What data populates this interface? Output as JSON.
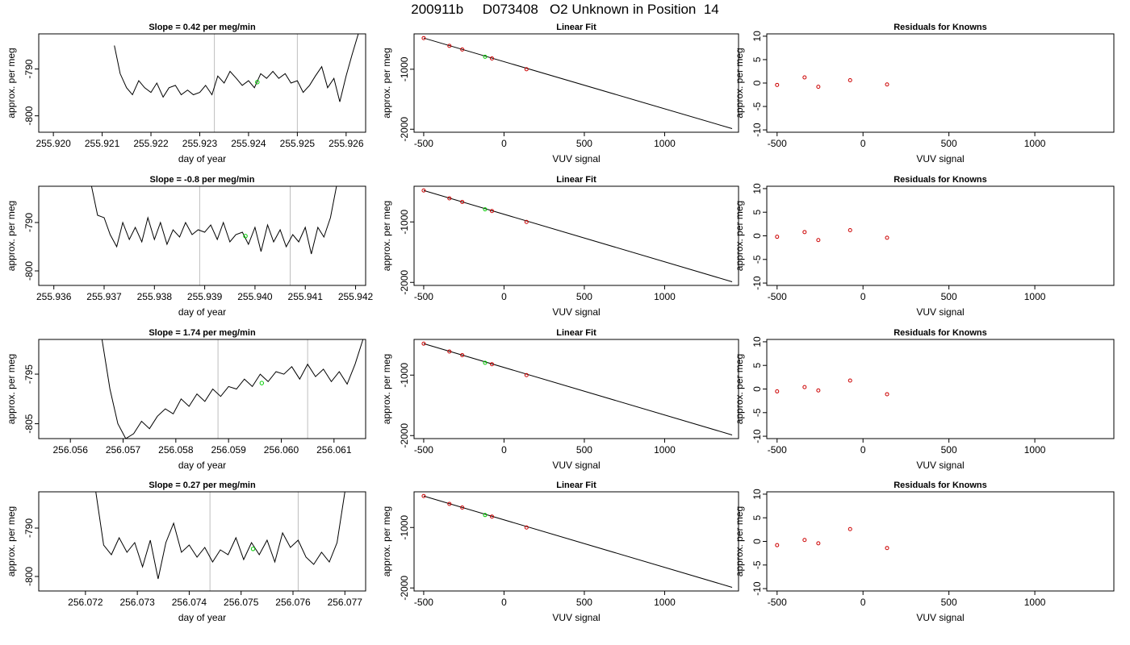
{
  "page_title": "200911b     D073408   O2 Unknown in Position  14",
  "colors": {
    "series_line": "#000000",
    "marker_green": "#00cc00",
    "marker_red": "#cc0000",
    "reference_vline": "#bebebe",
    "fit_line": "#000000"
  },
  "chart_data": [
    {
      "type": "line",
      "panel": "timeseries",
      "title": "Slope =  0.42  per meg/min",
      "xlabel": "day of year",
      "ylabel": "approx. per meg",
      "xlim": [
        255.9197,
        255.9264
      ],
      "ylim": [
        -803.5,
        -782.5
      ],
      "xticks": [
        255.92,
        255.921,
        255.922,
        255.923,
        255.924,
        255.925,
        255.926
      ],
      "xtick_labels": [
        "255.920",
        "255.921",
        "255.922",
        "255.923",
        "255.924",
        "255.925",
        "255.926"
      ],
      "yticks": [
        -790,
        -800
      ],
      "ytick_labels": [
        "-790",
        "-800"
      ],
      "vlines": [
        255.9233,
        255.925
      ],
      "x": [
        255.92125,
        255.92137,
        255.9215,
        255.92162,
        255.92175,
        255.92187,
        255.922,
        255.92212,
        255.92225,
        255.92237,
        255.9225,
        255.92262,
        255.92275,
        255.92287,
        255.923,
        255.92312,
        255.92325,
        255.92337,
        255.9235,
        255.92362,
        255.92375,
        255.92387,
        255.924,
        255.92412,
        255.92425,
        255.92437,
        255.9245,
        255.92462,
        255.92475,
        255.92487,
        255.925,
        255.92512,
        255.92525,
        255.92537,
        255.9255,
        255.92562,
        255.92575,
        255.92587,
        255.926,
        255.92612,
        255.92625
      ],
      "y": [
        -785.0,
        -791.0,
        -794.0,
        -795.5,
        -792.5,
        -794.0,
        -795.0,
        -793.0,
        -796.0,
        -794.0,
        -793.5,
        -795.5,
        -794.5,
        -795.5,
        -795.0,
        -793.5,
        -795.5,
        -791.5,
        -793.0,
        -790.5,
        -792.0,
        -793.5,
        -792.5,
        -794.0,
        -791.0,
        -792.0,
        -790.5,
        -792.0,
        -791.0,
        -793.0,
        -792.5,
        -795.0,
        -793.5,
        -791.5,
        -789.5,
        -794.0,
        -792.0,
        -797.0,
        -791.5,
        -787.0,
        -782.5
      ],
      "green_point": {
        "x": 255.92418,
        "y": -792.8
      }
    },
    {
      "type": "scatter",
      "panel": "fit",
      "title": "Linear Fit",
      "xlabel": "VUV signal",
      "ylabel": "approx. per meg",
      "xlim": [
        -560,
        1460
      ],
      "ylim": [
        -2050,
        -410
      ],
      "xticks": [
        -500,
        0,
        500,
        1000
      ],
      "xtick_labels": [
        "-500",
        "0",
        "500",
        "1000"
      ],
      "yticks": [
        -1000,
        -2000
      ],
      "ytick_labels": [
        "-1000",
        "-2000"
      ],
      "fit_line": {
        "x": [
          -500,
          1420
        ],
        "y": [
          -480,
          -1990
        ]
      },
      "knowns": {
        "x": [
          -500,
          -340,
          -260,
          -75,
          140
        ],
        "y": [
          -480,
          -610,
          -670,
          -820,
          -1000
        ]
      },
      "unknown": {
        "x": -118,
        "y": -792
      }
    },
    {
      "type": "scatter",
      "panel": "residuals",
      "title": "Residuals for Knowns",
      "xlabel": "VUV signal",
      "ylabel": "approx. per meg",
      "xlim": [
        -560,
        1460
      ],
      "ylim": [
        -10.5,
        10.5
      ],
      "xticks": [
        -500,
        0,
        500,
        1000
      ],
      "xtick_labels": [
        "-500",
        "0",
        "500",
        "1000"
      ],
      "yticks": [
        10,
        5,
        0,
        -5,
        -10
      ],
      "ytick_labels": [
        "10",
        "5",
        "0",
        "-5",
        "-10"
      ],
      "x": [
        -500,
        -340,
        -260,
        -75,
        140
      ],
      "y": [
        -0.4,
        1.2,
        -0.8,
        0.6,
        -0.3
      ]
    },
    {
      "type": "line",
      "panel": "timeseries",
      "title": "Slope =  -0.8  per meg/min",
      "xlabel": "day of year",
      "ylabel": "approx. per meg",
      "xlim": [
        255.9357,
        255.9422
      ],
      "ylim": [
        -803.0,
        -782.5
      ],
      "xticks": [
        255.936,
        255.937,
        255.938,
        255.939,
        255.94,
        255.941,
        255.942
      ],
      "xtick_labels": [
        "255.936",
        "255.937",
        "255.938",
        "255.939",
        "255.940",
        "255.941",
        "255.942"
      ],
      "yticks": [
        -790,
        -800
      ],
      "ytick_labels": [
        "-790",
        "-800"
      ],
      "vlines": [
        255.9389,
        255.9407
      ],
      "x": [
        255.93675,
        255.93687,
        255.937,
        255.93712,
        255.93725,
        255.93737,
        255.9375,
        255.93762,
        255.93775,
        255.93787,
        255.938,
        255.93812,
        255.93825,
        255.93837,
        255.9385,
        255.93862,
        255.93875,
        255.93887,
        255.939,
        255.93912,
        255.93925,
        255.93937,
        255.9395,
        255.93962,
        255.93975,
        255.93987,
        255.94,
        255.94012,
        255.94025,
        255.94037,
        255.9405,
        255.94062,
        255.94075,
        255.94087,
        255.941,
        255.94112,
        255.94125,
        255.94137,
        255.9415,
        255.94162
      ],
      "y": [
        -782.5,
        -788.5,
        -789.0,
        -792.5,
        -795.0,
        -790.0,
        -793.5,
        -791.0,
        -794.0,
        -789.0,
        -793.5,
        -790.0,
        -794.5,
        -791.5,
        -793.0,
        -790.0,
        -792.5,
        -791.5,
        -792.0,
        -790.5,
        -793.5,
        -790.0,
        -794.0,
        -792.5,
        -792.0,
        -794.5,
        -791.0,
        -796.0,
        -790.5,
        -794.0,
        -791.5,
        -795.0,
        -792.5,
        -794.0,
        -791.0,
        -796.5,
        -791.0,
        -793.0,
        -789.0,
        -782.5
      ],
      "green_point": {
        "x": 255.93981,
        "y": -792.8
      }
    },
    {
      "type": "scatter",
      "panel": "fit",
      "title": "Linear Fit",
      "xlabel": "VUV signal",
      "ylabel": "approx. per meg",
      "xlim": [
        -560,
        1460
      ],
      "ylim": [
        -2050,
        -410
      ],
      "xticks": [
        -500,
        0,
        500,
        1000
      ],
      "xtick_labels": [
        "-500",
        "0",
        "500",
        "1000"
      ],
      "yticks": [
        -1000,
        -2000
      ],
      "ytick_labels": [
        "-1000",
        "-2000"
      ],
      "fit_line": {
        "x": [
          -500,
          1420
        ],
        "y": [
          -480,
          -1990
        ]
      },
      "knowns": {
        "x": [
          -500,
          -340,
          -260,
          -75,
          140
        ],
        "y": [
          -480,
          -610,
          -670,
          -820,
          -1000
        ]
      },
      "unknown": {
        "x": -118,
        "y": -792
      }
    },
    {
      "type": "scatter",
      "panel": "residuals",
      "title": "Residuals for Knowns",
      "xlabel": "VUV signal",
      "ylabel": "approx. per meg",
      "xlim": [
        -560,
        1460
      ],
      "ylim": [
        -10.5,
        10.5
      ],
      "xticks": [
        -500,
        0,
        500,
        1000
      ],
      "xtick_labels": [
        "-500",
        "0",
        "500",
        "1000"
      ],
      "yticks": [
        10,
        5,
        0,
        -5,
        -10
      ],
      "ytick_labels": [
        "10",
        "5",
        "0",
        "-5",
        "-10"
      ],
      "x": [
        -500,
        -340,
        -260,
        -75,
        140
      ],
      "y": [
        -0.2,
        0.8,
        -0.9,
        1.2,
        -0.4
      ]
    },
    {
      "type": "line",
      "panel": "timeseries",
      "title": "Slope =  1.74  per meg/min",
      "xlabel": "day of year",
      "ylabel": "approx. per meg",
      "xlim": [
        256.0554,
        256.0616
      ],
      "ylim": [
        -808.0,
        -788.0
      ],
      "xticks": [
        256.056,
        256.057,
        256.058,
        256.059,
        256.06,
        256.061
      ],
      "xtick_labels": [
        "256.056",
        "256.057",
        "256.058",
        "256.059",
        "256.060",
        "256.061"
      ],
      "yticks": [
        -795,
        -805
      ],
      "ytick_labels": [
        "-795",
        "-805"
      ],
      "vlines": [
        256.0588,
        256.0605
      ],
      "x": [
        256.0566,
        256.05675,
        256.0569,
        256.05705,
        256.0572,
        256.05735,
        256.0575,
        256.05765,
        256.0578,
        256.05795,
        256.0581,
        256.05825,
        256.0584,
        256.05855,
        256.0587,
        256.05885,
        256.059,
        256.05915,
        256.0593,
        256.05945,
        256.0596,
        256.05975,
        256.0599,
        256.06005,
        256.0602,
        256.06035,
        256.0605,
        256.06065,
        256.0608,
        256.06095,
        256.0611,
        256.06125,
        256.0614,
        256.06155
      ],
      "y": [
        -788.0,
        -798.0,
        -805.0,
        -808.0,
        -807.0,
        -804.5,
        -806.0,
        -803.5,
        -802.0,
        -803.0,
        -800.0,
        -801.5,
        -799.0,
        -800.5,
        -798.0,
        -799.5,
        -797.5,
        -798.0,
        -796.0,
        -797.5,
        -795.0,
        -796.5,
        -794.5,
        -795.0,
        -793.5,
        -796.0,
        -793.0,
        -795.5,
        -794.0,
        -796.5,
        -794.5,
        -797.0,
        -793.0,
        -788.0
      ],
      "green_point": {
        "x": 256.05963,
        "y": -796.8
      }
    },
    {
      "type": "scatter",
      "panel": "fit",
      "title": "Linear Fit",
      "xlabel": "VUV signal",
      "ylabel": "approx. per meg",
      "xlim": [
        -560,
        1460
      ],
      "ylim": [
        -2050,
        -410
      ],
      "xticks": [
        -500,
        0,
        500,
        1000
      ],
      "xtick_labels": [
        "-500",
        "0",
        "500",
        "1000"
      ],
      "yticks": [
        -1000,
        -2000
      ],
      "ytick_labels": [
        "-1000",
        "-2000"
      ],
      "fit_line": {
        "x": [
          -500,
          1420
        ],
        "y": [
          -480,
          -1990
        ]
      },
      "knowns": {
        "x": [
          -500,
          -340,
          -260,
          -75,
          140
        ],
        "y": [
          -480,
          -610,
          -670,
          -820,
          -1000
        ]
      },
      "unknown": {
        "x": -118,
        "y": -796
      }
    },
    {
      "type": "scatter",
      "panel": "residuals",
      "title": "Residuals for Knowns",
      "xlabel": "VUV signal",
      "ylabel": "approx. per meg",
      "xlim": [
        -560,
        1460
      ],
      "ylim": [
        -10.5,
        10.5
      ],
      "xticks": [
        -500,
        0,
        500,
        1000
      ],
      "xtick_labels": [
        "-500",
        "0",
        "500",
        "1000"
      ],
      "yticks": [
        10,
        5,
        0,
        -5,
        -10
      ],
      "ytick_labels": [
        "10",
        "5",
        "0",
        "-5",
        "-10"
      ],
      "x": [
        -500,
        -340,
        -260,
        -75,
        140
      ],
      "y": [
        -0.5,
        0.4,
        -0.3,
        1.8,
        -1.1
      ]
    },
    {
      "type": "line",
      "panel": "timeseries",
      "title": "Slope =  0.27  per meg/min",
      "xlabel": "day of year",
      "ylabel": "approx. per meg",
      "xlim": [
        256.0711,
        256.0774
      ],
      "ylim": [
        -803.0,
        -782.5
      ],
      "xticks": [
        256.072,
        256.073,
        256.074,
        256.075,
        256.076,
        256.077
      ],
      "xtick_labels": [
        "256.072",
        "256.073",
        "256.074",
        "256.075",
        "256.076",
        "256.077"
      ],
      "yticks": [
        -790,
        -800
      ],
      "ytick_labels": [
        "-790",
        "-800"
      ],
      "vlines": [
        256.0744,
        256.0761
      ],
      "x": [
        256.0722,
        256.07235,
        256.0725,
        256.07265,
        256.0728,
        256.07295,
        256.0731,
        256.07325,
        256.0734,
        256.07355,
        256.0737,
        256.07385,
        256.074,
        256.07415,
        256.0743,
        256.07445,
        256.0746,
        256.07475,
        256.0749,
        256.07505,
        256.0752,
        256.07535,
        256.0755,
        256.07565,
        256.0758,
        256.07595,
        256.0761,
        256.07625,
        256.0764,
        256.07655,
        256.0767,
        256.07685,
        256.077
      ],
      "y": [
        -782.5,
        -793.5,
        -795.5,
        -792.0,
        -795.0,
        -793.0,
        -798.0,
        -792.5,
        -800.5,
        -793.0,
        -789.0,
        -795.0,
        -793.5,
        -796.0,
        -794.0,
        -797.0,
        -794.5,
        -795.5,
        -792.0,
        -796.5,
        -793.0,
        -795.5,
        -792.5,
        -797.0,
        -791.0,
        -794.0,
        -792.5,
        -796.0,
        -797.5,
        -795.0,
        -797.0,
        -793.0,
        -782.5
      ],
      "green_point": {
        "x": 256.07523,
        "y": -794.3
      }
    },
    {
      "type": "scatter",
      "panel": "fit",
      "title": "Linear Fit",
      "xlabel": "VUV signal",
      "ylabel": "approx. per meg",
      "xlim": [
        -560,
        1460
      ],
      "ylim": [
        -2050,
        -410
      ],
      "xticks": [
        -500,
        0,
        500,
        1000
      ],
      "xtick_labels": [
        "-500",
        "0",
        "500",
        "1000"
      ],
      "yticks": [
        -1000,
        -2000
      ],
      "ytick_labels": [
        "-1000",
        "-2000"
      ],
      "fit_line": {
        "x": [
          -500,
          1420
        ],
        "y": [
          -480,
          -1990
        ]
      },
      "knowns": {
        "x": [
          -500,
          -340,
          -260,
          -75,
          140
        ],
        "y": [
          -480,
          -610,
          -670,
          -820,
          -1000
        ]
      },
      "unknown": {
        "x": -118,
        "y": -794
      }
    },
    {
      "type": "scatter",
      "panel": "residuals",
      "title": "Residuals for Knowns",
      "xlabel": "VUV signal",
      "ylabel": "approx. per meg",
      "xlim": [
        -560,
        1460
      ],
      "ylim": [
        -10.5,
        10.5
      ],
      "xticks": [
        -500,
        0,
        500,
        1000
      ],
      "xtick_labels": [
        "-500",
        "0",
        "500",
        "1000"
      ],
      "yticks": [
        10,
        5,
        0,
        -5,
        -10
      ],
      "ytick_labels": [
        "10",
        "5",
        "0",
        "-5",
        "-10"
      ],
      "x": [
        -500,
        -340,
        -260,
        -75,
        140
      ],
      "y": [
        -0.8,
        0.3,
        -0.4,
        2.6,
        -1.4
      ]
    }
  ]
}
